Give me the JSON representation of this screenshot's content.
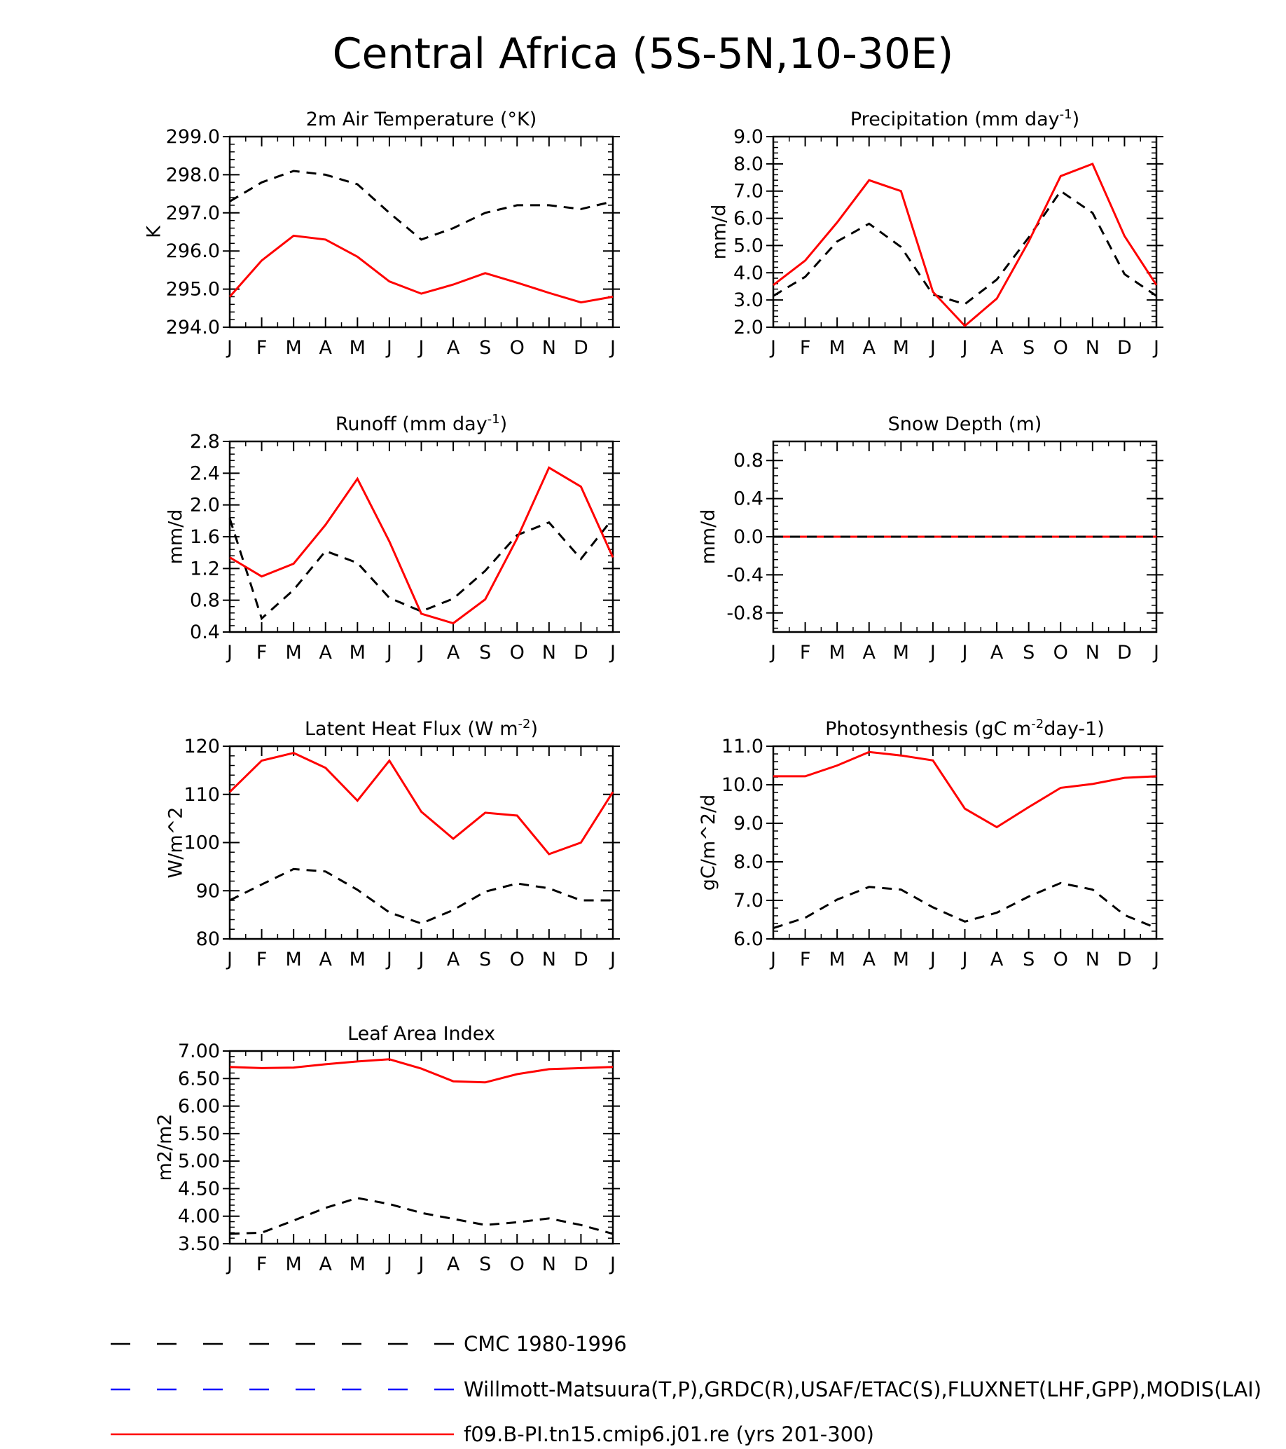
{
  "figure_title": "Central Africa (5S-5N,10-30E)",
  "legend": [
    {
      "label": "CMC 1980-1996",
      "color": "#000000",
      "dash": "dashed"
    },
    {
      "label": "Willmott-Matsuura(T,P),GRDC(R),USAF/ETAC(S),FLUXNET(LHF,GPP),MODIS(LAI)",
      "color": "#0000ff",
      "dash": "dashed"
    },
    {
      "label": "f09.B-PI.tn15.cmip6.j01.re (yrs 201-300)",
      "color": "#ff0000",
      "dash": "solid"
    }
  ],
  "colors": {
    "obs": "#000000",
    "model": "#ff0000",
    "alt_obs": "#0000ff"
  },
  "chart_data": [
    {
      "type": "line",
      "title": "2m Air Temperature (°K)",
      "ylabel": "K",
      "ylim": [
        294.0,
        299.0
      ],
      "yticks": [
        294.0,
        295.0,
        296.0,
        297.0,
        298.0,
        299.0
      ],
      "ytick_labels": [
        "294.0",
        "295.0",
        "296.0",
        "297.0",
        "298.0",
        "299.0"
      ],
      "categories": [
        "J",
        "F",
        "M",
        "A",
        "M",
        "J",
        "J",
        "A",
        "S",
        "O",
        "N",
        "D",
        "J"
      ],
      "series": [
        {
          "name": "CMC 1980-1996",
          "style": "dashed",
          "color": "#000000",
          "values": [
            297.3,
            297.8,
            298.1,
            298.0,
            297.75,
            297.0,
            296.3,
            296.6,
            297.0,
            297.2,
            297.2,
            297.1,
            297.3
          ]
        },
        {
          "name": "f09.B-PI.tn15.cmip6.j01.re (yrs 201-300)",
          "style": "solid",
          "color": "#ff0000",
          "values": [
            294.8,
            295.75,
            296.4,
            296.3,
            295.85,
            295.2,
            294.88,
            295.12,
            295.42,
            295.17,
            294.9,
            294.65,
            294.8
          ]
        }
      ]
    },
    {
      "type": "line",
      "title": "Precipitation (mm day-1)",
      "ylabel": "mm/d",
      "ylim": [
        2.0,
        9.0
      ],
      "yticks": [
        2.0,
        3.0,
        4.0,
        5.0,
        6.0,
        7.0,
        8.0,
        9.0
      ],
      "ytick_labels": [
        "2.0",
        "3.0",
        "4.0",
        "5.0",
        "6.0",
        "7.0",
        "8.0",
        "9.0"
      ],
      "categories": [
        "J",
        "F",
        "M",
        "A",
        "M",
        "J",
        "J",
        "A",
        "S",
        "O",
        "N",
        "D",
        "J"
      ],
      "series": [
        {
          "name": "CMC 1980-1996",
          "style": "dashed",
          "color": "#000000",
          "values": [
            3.15,
            3.85,
            5.15,
            5.8,
            4.95,
            3.2,
            2.85,
            3.75,
            5.3,
            7.0,
            6.2,
            3.95,
            3.15
          ]
        },
        {
          "name": "f09.B-PI.tn15.cmip6.j01.re (yrs 201-300)",
          "style": "solid",
          "color": "#ff0000",
          "values": [
            3.55,
            4.45,
            5.85,
            7.4,
            7.0,
            3.3,
            2.05,
            3.05,
            5.15,
            7.55,
            8.0,
            5.35,
            3.55
          ]
        }
      ]
    },
    {
      "type": "line",
      "title": "Runoff (mm day-1)",
      "ylabel": "mm/d",
      "ylim": [
        0.4,
        2.8
      ],
      "yticks": [
        0.4,
        0.8,
        1.2,
        1.6,
        2.0,
        2.4,
        2.8
      ],
      "ytick_labels": [
        "0.4",
        "0.8",
        "1.2",
        "1.6",
        "2.0",
        "2.4",
        "2.8"
      ],
      "categories": [
        "J",
        "F",
        "M",
        "A",
        "M",
        "J",
        "J",
        "A",
        "S",
        "O",
        "N",
        "D",
        "J"
      ],
      "series": [
        {
          "name": "CMC 1980-1996",
          "style": "dashed",
          "color": "#000000",
          "values": [
            1.83,
            0.57,
            0.93,
            1.42,
            1.27,
            0.83,
            0.66,
            0.82,
            1.17,
            1.62,
            1.78,
            1.32,
            1.83
          ]
        },
        {
          "name": "f09.B-PI.tn15.cmip6.j01.re (yrs 201-300)",
          "style": "solid",
          "color": "#ff0000",
          "values": [
            1.34,
            1.1,
            1.26,
            1.75,
            2.33,
            1.54,
            0.63,
            0.51,
            0.81,
            1.58,
            2.47,
            2.23,
            1.34
          ]
        }
      ]
    },
    {
      "type": "line",
      "title": "Snow Depth (m)",
      "ylabel": "mm/d",
      "ylim": [
        -1.0,
        1.0
      ],
      "yticks": [
        -0.8,
        -0.4,
        0.0,
        0.4,
        0.8
      ],
      "ytick_labels": [
        "-0.8",
        "-0.4",
        "0.0",
        "0.4",
        "0.8"
      ],
      "categories": [
        "J",
        "F",
        "M",
        "A",
        "M",
        "J",
        "J",
        "A",
        "S",
        "O",
        "N",
        "D",
        "J"
      ],
      "series": [
        {
          "name": "f09.B-PI.tn15.cmip6.j01.re (yrs 201-300)",
          "style": "solid",
          "color": "#ff0000",
          "values": [
            0,
            0,
            0,
            0,
            0,
            0,
            0,
            0,
            0,
            0,
            0,
            0,
            0
          ]
        },
        {
          "name": "CMC 1980-1996",
          "style": "dashed",
          "color": "#000000",
          "values": [
            0,
            0,
            0,
            0,
            0,
            0,
            0,
            0,
            0,
            0,
            0,
            0,
            0
          ]
        }
      ]
    },
    {
      "type": "line",
      "title": "Latent Heat Flux (W m-2)",
      "ylabel": "W/m^2",
      "ylim": [
        80,
        120
      ],
      "yticks": [
        80,
        90,
        100,
        110,
        120
      ],
      "ytick_labels": [
        "80",
        "90",
        "100",
        "110",
        "120"
      ],
      "categories": [
        "J",
        "F",
        "M",
        "A",
        "M",
        "J",
        "J",
        "A",
        "S",
        "O",
        "N",
        "D",
        "J"
      ],
      "series": [
        {
          "name": "CMC 1980-1996",
          "style": "dashed",
          "color": "#000000",
          "values": [
            88.0,
            91.3,
            94.5,
            94.0,
            90.2,
            85.5,
            83.2,
            86.0,
            89.8,
            91.5,
            90.5,
            88.0,
            88.0
          ]
        },
        {
          "name": "f09.B-PI.tn15.cmip6.j01.re (yrs 201-300)",
          "style": "solid",
          "color": "#ff0000",
          "values": [
            110.5,
            117.0,
            118.6,
            115.5,
            108.7,
            117.0,
            106.4,
            100.8,
            106.2,
            105.6,
            97.6,
            100.0,
            110.5
          ]
        }
      ]
    },
    {
      "type": "line",
      "title": "Photosynthesis (gC m-2day-1)",
      "ylabel": "gC/m^2/d",
      "ylim": [
        6.0,
        11.0
      ],
      "yticks": [
        6.0,
        7.0,
        8.0,
        9.0,
        10.0,
        11.0
      ],
      "ytick_labels": [
        "6.0",
        "7.0",
        "8.0",
        "9.0",
        "10.0",
        "11.0"
      ],
      "categories": [
        "J",
        "F",
        "M",
        "A",
        "M",
        "J",
        "J",
        "A",
        "S",
        "O",
        "N",
        "D",
        "J"
      ],
      "series": [
        {
          "name": "CMC 1980-1996",
          "style": "dashed",
          "color": "#000000",
          "values": [
            6.28,
            6.55,
            7.02,
            7.35,
            7.28,
            6.82,
            6.45,
            6.68,
            7.1,
            7.45,
            7.28,
            6.62,
            6.28
          ]
        },
        {
          "name": "f09.B-PI.tn15.cmip6.j01.re (yrs 201-300)",
          "style": "solid",
          "color": "#ff0000",
          "values": [
            10.22,
            10.22,
            10.5,
            10.85,
            10.76,
            10.63,
            9.38,
            8.9,
            9.42,
            9.92,
            10.02,
            10.18,
            10.22
          ]
        }
      ]
    },
    {
      "type": "line",
      "title": "Leaf Area Index",
      "ylabel": "m2/m2",
      "ylim": [
        3.5,
        7.0
      ],
      "yticks": [
        3.5,
        4.0,
        4.5,
        5.0,
        5.5,
        6.0,
        6.5,
        7.0
      ],
      "ytick_labels": [
        "3.50",
        "4.00",
        "4.50",
        "5.00",
        "5.50",
        "6.00",
        "6.50",
        "7.00"
      ],
      "categories": [
        "J",
        "F",
        "M",
        "A",
        "M",
        "J",
        "J",
        "A",
        "S",
        "O",
        "N",
        "D",
        "J"
      ],
      "series": [
        {
          "name": "CMC 1980-1996",
          "style": "dashed",
          "color": "#000000",
          "values": [
            3.68,
            3.7,
            3.92,
            4.15,
            4.33,
            4.22,
            4.06,
            3.95,
            3.84,
            3.89,
            3.96,
            3.84,
            3.68
          ]
        },
        {
          "name": "f09.B-PI.tn15.cmip6.j01.re (yrs 201-300)",
          "style": "solid",
          "color": "#ff0000",
          "values": [
            6.71,
            6.69,
            6.7,
            6.76,
            6.81,
            6.85,
            6.68,
            6.45,
            6.43,
            6.58,
            6.67,
            6.69,
            6.71
          ]
        }
      ]
    }
  ]
}
